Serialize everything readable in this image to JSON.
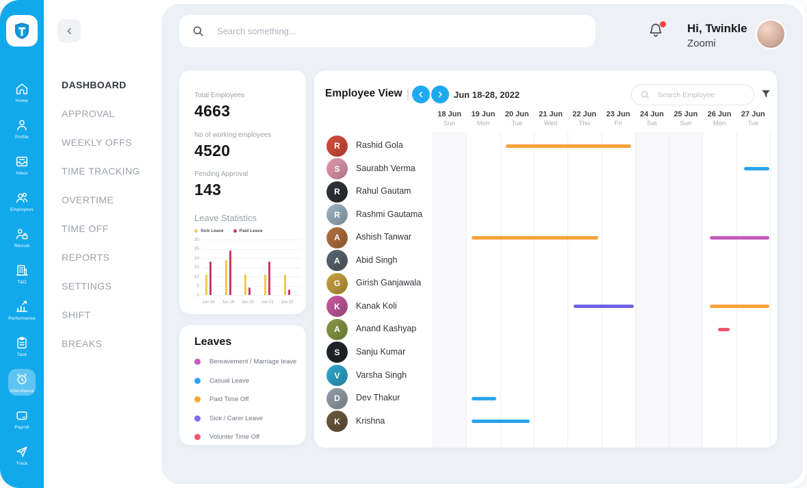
{
  "rail": {
    "items": [
      {
        "label": "Home",
        "icon": "home-icon",
        "active": false
      },
      {
        "label": "Profile",
        "icon": "profile-icon",
        "active": false
      },
      {
        "label": "Inbox",
        "icon": "inbox-icon",
        "active": false
      },
      {
        "label": "Employees",
        "icon": "employees-icon",
        "active": false
      },
      {
        "label": "Recruit",
        "icon": "recruit-icon",
        "active": false
      },
      {
        "label": "T&D",
        "icon": "td-icon",
        "active": false
      },
      {
        "label": "Performance",
        "icon": "performance-icon",
        "active": false
      },
      {
        "label": "Task",
        "icon": "task-icon",
        "active": false
      },
      {
        "label": "Attendance",
        "icon": "attendance-icon",
        "active": true
      },
      {
        "label": "Payroll",
        "icon": "payroll-icon",
        "active": false
      },
      {
        "label": "Track",
        "icon": "track-icon",
        "active": false
      }
    ]
  },
  "sidebar": {
    "items": [
      {
        "label": "DASHBOARD",
        "active": true
      },
      {
        "label": "APPROVAL",
        "active": false
      },
      {
        "label": "WEEKLY OFFS",
        "active": false
      },
      {
        "label": "TIME TRACKING",
        "active": false
      },
      {
        "label": "OVERTIME",
        "active": false
      },
      {
        "label": "TIME OFF",
        "active": false
      },
      {
        "label": "REPORTS",
        "active": false
      },
      {
        "label": "SETTINGS",
        "active": false
      },
      {
        "label": "SHIFT",
        "active": false
      },
      {
        "label": "BREAKS",
        "active": false
      }
    ]
  },
  "topbar": {
    "search_placeholder": "Search something...",
    "greeting": "Hi, Twinkle",
    "username": "Zoomi",
    "notification_dot": true
  },
  "stats": {
    "metrics": [
      {
        "label": "Total Employees",
        "value": "4663"
      },
      {
        "label": "No of working employees",
        "value": "4520"
      },
      {
        "label": "Pending Approval",
        "value": "143"
      }
    ],
    "chart_title": "Leave Statistics",
    "chart_data": {
      "type": "bar",
      "categories": [
        "Jun 18",
        "Jun 19",
        "Jun 20",
        "Jun 21",
        "Jun 22"
      ],
      "series": [
        {
          "name": "Sick Leave",
          "color": "#F2C94C",
          "values": [
            11,
            19,
            11,
            11,
            11
          ]
        },
        {
          "name": "Paid Leave",
          "color": "#C23A66",
          "values": [
            18,
            24,
            4,
            18,
            3
          ]
        }
      ],
      "ylim": [
        0,
        30
      ],
      "yticks": [
        0,
        5,
        10,
        15,
        20,
        25,
        30
      ],
      "legend_position": "top",
      "grid": true
    }
  },
  "leaves_legend": {
    "title": "Leaves",
    "items": [
      {
        "label": "Bereavement / Marriage leave",
        "color": "#C65BBC"
      },
      {
        "label": "Casual Leave",
        "color": "#2BA3EE"
      },
      {
        "label": "Paid Time Off",
        "color": "#F5A62B"
      },
      {
        "label": "Sick / Carer Leave",
        "color": "#7A6CEB"
      },
      {
        "label": "Volunter Time Off",
        "color": "#F2556D"
      }
    ]
  },
  "employee_view": {
    "title": "Employee View",
    "date_range": "Jun 18-28, 2022",
    "search_placeholder": "Search Employee",
    "days": [
      {
        "date": "18 Jun",
        "dow": "Sun",
        "weekend": true
      },
      {
        "date": "19 Jun",
        "dow": "Mon",
        "weekend": false
      },
      {
        "date": "20 Jun",
        "dow": "Tue",
        "weekend": false
      },
      {
        "date": "21 Jun",
        "dow": "Wed",
        "weekend": false
      },
      {
        "date": "22 Jun",
        "dow": "Thu",
        "weekend": false
      },
      {
        "date": "23 Jun",
        "dow": "Fri",
        "weekend": false
      },
      {
        "date": "24 Jun",
        "dow": "Sat",
        "weekend": true
      },
      {
        "date": "25 Jun",
        "dow": "Sun",
        "weekend": true
      },
      {
        "date": "26 Jun",
        "dow": "Mon",
        "weekend": false
      },
      {
        "date": "27 Jun",
        "dow": "Tue",
        "weekend": false
      }
    ],
    "leave_colors": {
      "paid_time_off": "#F7A23B",
      "casual": "#2BA3EE",
      "bereavement": "#C65BBC",
      "sick_carer": "#6E63E6",
      "volunteer": "#F2556D"
    },
    "employees": [
      {
        "name": "Rashid Gola",
        "avatar_color": "#d94f3d"
      },
      {
        "name": "Saurabh Verma",
        "avatar_color": "#e59aae"
      },
      {
        "name": "Rahul Gautam",
        "avatar_color": "#2f3237"
      },
      {
        "name": "Rashmi Gautama",
        "avatar_color": "#9fb4c4"
      },
      {
        "name": "Ashish Tanwar",
        "avatar_color": "#b5713f"
      },
      {
        "name": "Abid Singh",
        "avatar_color": "#5a6570"
      },
      {
        "name": "Girish Ganjawala",
        "avatar_color": "#c9a23f"
      },
      {
        "name": "Kanak Koli",
        "avatar_color": "#c75b9e"
      },
      {
        "name": "Anand Kashyap",
        "avatar_color": "#8a9a45"
      },
      {
        "name": "Sanju Kumar",
        "avatar_color": "#23272b"
      },
      {
        "name": "Varsha Singh",
        "avatar_color": "#2fa8cf"
      },
      {
        "name": "Dev Thakur",
        "avatar_color": "#97a0ab"
      },
      {
        "name": "Krishna",
        "avatar_color": "#6d5a3f"
      }
    ],
    "bars": [
      {
        "employee": 0,
        "type": "paid_time_off",
        "start": 2.18,
        "end": 5.88
      },
      {
        "employee": 1,
        "type": "casual",
        "start": 9.22,
        "end": 9.98
      },
      {
        "employee": 4,
        "type": "paid_time_off",
        "start": 1.15,
        "end": 4.9
      },
      {
        "employee": 4,
        "type": "bereavement",
        "start": 8.22,
        "end": 9.98
      },
      {
        "employee": 7,
        "type": "sick_carer",
        "start": 4.17,
        "end": 5.96
      },
      {
        "employee": 7,
        "type": "paid_time_off",
        "start": 8.22,
        "end": 9.98
      },
      {
        "employee": 8,
        "type": "volunteer",
        "start": 8.46,
        "end": 8.81
      },
      {
        "employee": 11,
        "type": "casual",
        "start": 1.15,
        "end": 1.89
      },
      {
        "employee": 12,
        "type": "casual",
        "start": 1.15,
        "end": 2.88
      }
    ]
  }
}
